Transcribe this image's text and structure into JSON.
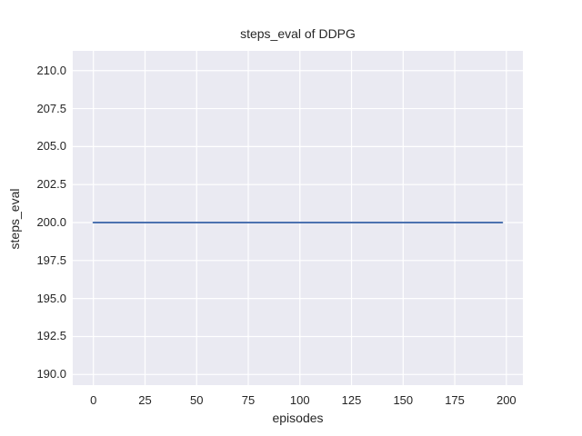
{
  "chart_data": {
    "type": "line",
    "title": "steps_eval of DDPG",
    "xlabel": "episodes",
    "ylabel": "steps_eval",
    "x_ticks": [
      0,
      25,
      50,
      75,
      100,
      125,
      150,
      175,
      200
    ],
    "y_ticks": [
      "190.0",
      "192.5",
      "195.0",
      "197.5",
      "200.0",
      "202.5",
      "205.0",
      "207.5",
      "210.0"
    ],
    "xlim": [
      -10,
      208
    ],
    "ylim": [
      189.3,
      211.3
    ],
    "grid": true,
    "legend": "none",
    "series": [
      {
        "name": "steps_eval",
        "color": "#4c72b0",
        "x": [
          0,
          198
        ],
        "y": [
          200,
          200
        ],
        "note": "constant horizontal line at steps_eval = 200 across all episodes"
      }
    ],
    "colors": {
      "plot_background": "#eaeaf2",
      "grid_line": "#ffffff",
      "figure_background": "#ffffff",
      "text": "#262626"
    }
  }
}
